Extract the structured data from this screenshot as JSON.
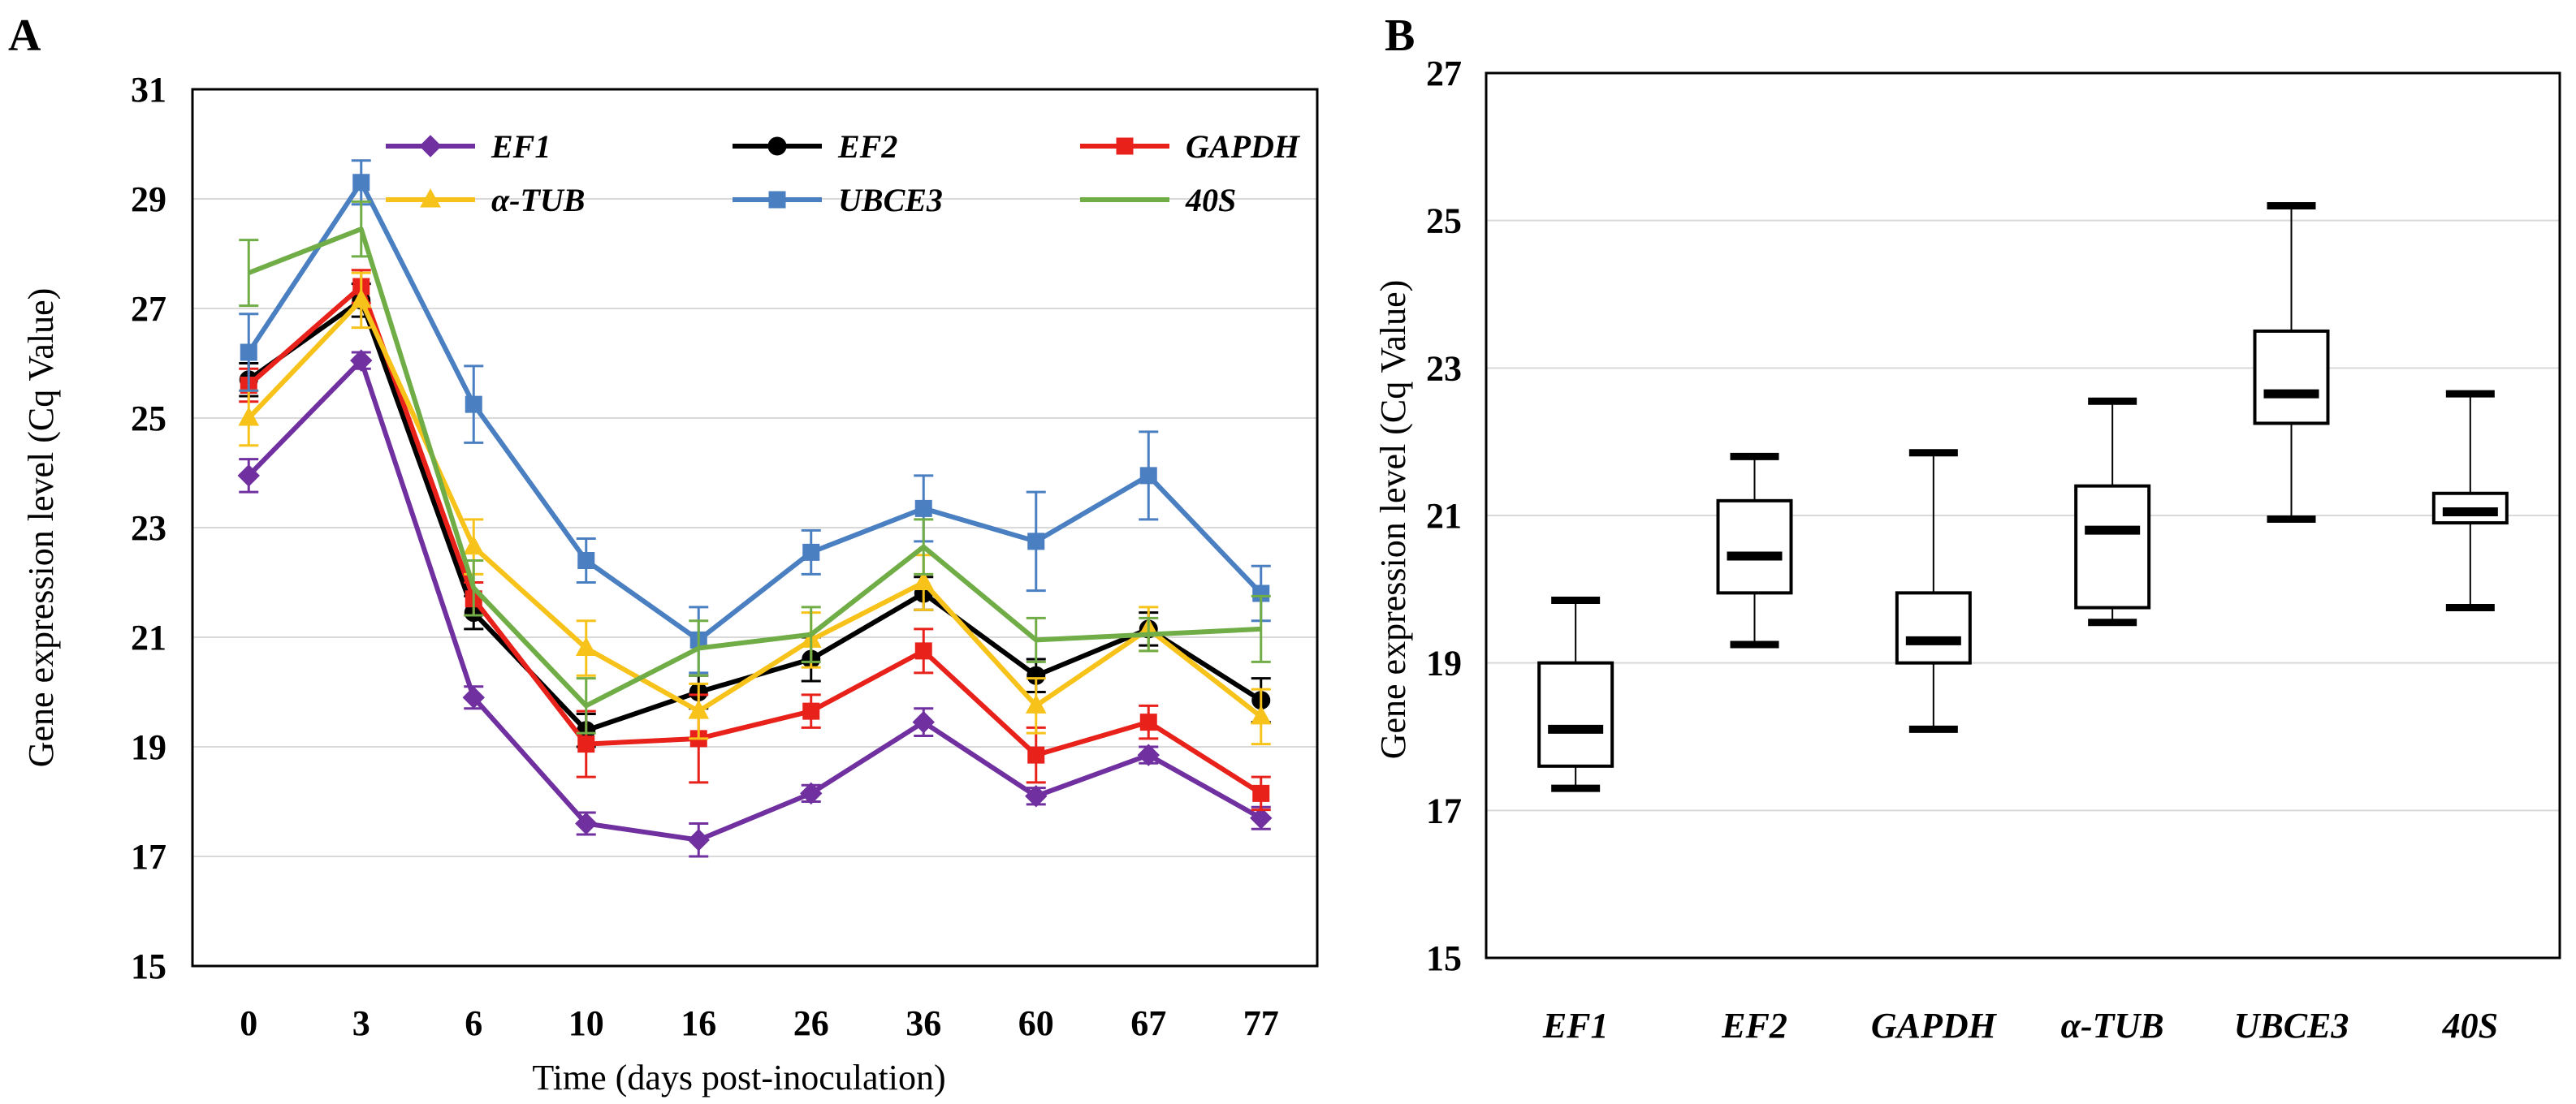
{
  "colors": {
    "EF1": "#7030a0",
    "EF2": "#000000",
    "GAPDH": "#e8211b",
    "alpha_TUB": "#f7c31a",
    "UBCE3": "#4a7fc1",
    "40S": "#70ad47",
    "grid": "#d9d9d9"
  },
  "chart_data": [
    {
      "panel": "A",
      "type": "line",
      "xlabel": "Time (days post-inoculation)",
      "ylabel": "Gene expression level (Cq Value)",
      "ylim": [
        15,
        31
      ],
      "yticks": [
        15,
        17,
        19,
        21,
        23,
        25,
        27,
        29,
        31
      ],
      "categories": [
        "0",
        "3",
        "6",
        "10",
        "16",
        "26",
        "36",
        "60",
        "67",
        "77"
      ],
      "grid": true,
      "legend": "top, 3 columns",
      "series": [
        {
          "name": "EF1",
          "key": "EF1",
          "marker": "diamond",
          "values": [
            23.95,
            26.05,
            19.9,
            17.6,
            17.3,
            18.15,
            19.45,
            18.1,
            18.85,
            17.7
          ],
          "errors": [
            0.3,
            0.15,
            0.2,
            0.2,
            0.3,
            0.15,
            0.25,
            0.15,
            0.15,
            0.2
          ]
        },
        {
          "name": "EF2",
          "key": "EF2",
          "marker": "circle",
          "values": [
            25.7,
            27.15,
            21.45,
            19.3,
            20.0,
            20.6,
            21.8,
            20.3,
            21.15,
            19.85
          ],
          "errors": [
            0.3,
            0.3,
            0.3,
            0.3,
            0.3,
            0.4,
            0.3,
            0.3,
            0.3,
            0.4
          ]
        },
        {
          "name": "GAPDH",
          "key": "GAPDH",
          "marker": "square",
          "values": [
            25.6,
            27.4,
            21.7,
            19.05,
            19.15,
            19.65,
            20.75,
            18.85,
            19.45,
            18.15
          ],
          "errors": [
            0.3,
            0.3,
            0.3,
            0.6,
            0.8,
            0.3,
            0.4,
            0.5,
            0.3,
            0.3
          ]
        },
        {
          "name": "α-TUB",
          "key": "alpha_TUB",
          "marker": "triangle",
          "values": [
            25.0,
            27.15,
            22.65,
            20.8,
            19.65,
            20.95,
            22.0,
            19.75,
            21.15,
            19.55
          ],
          "errors": [
            0.5,
            0.5,
            0.5,
            0.5,
            0.5,
            0.5,
            0.5,
            0.5,
            0.4,
            0.5
          ]
        },
        {
          "name": "UBCE3",
          "key": "UBCE3",
          "marker": "square",
          "values": [
            26.2,
            29.3,
            25.25,
            22.4,
            20.95,
            22.55,
            23.35,
            22.75,
            23.95,
            21.8
          ],
          "errors": [
            0.7,
            0.4,
            0.7,
            0.4,
            0.6,
            0.4,
            0.6,
            0.9,
            0.8,
            0.5
          ]
        },
        {
          "name": "40S",
          "key": "40S",
          "marker": "none",
          "values": [
            27.65,
            28.45,
            21.9,
            19.75,
            20.8,
            21.05,
            22.65,
            20.95,
            21.05,
            21.15
          ],
          "errors": [
            0.6,
            0.5,
            0.5,
            0.5,
            0.5,
            0.5,
            0.5,
            0.4,
            0.3,
            0.6
          ]
        }
      ]
    },
    {
      "panel": "B",
      "type": "box",
      "ylabel": "Gene expression  level (Cq Value)",
      "ylim": [
        15,
        27
      ],
      "yticks": [
        15,
        17,
        19,
        21,
        23,
        25,
        27
      ],
      "grid": true,
      "categories": [
        "EF1",
        "EF2",
        "GAPDH",
        "α-TUB",
        "UBCE3",
        "40S"
      ],
      "boxes": [
        {
          "name": "EF1",
          "min": 17.3,
          "q1": 17.6,
          "median": 18.1,
          "q3": 19.0,
          "max": 19.85
        },
        {
          "name": "EF2",
          "min": 19.25,
          "q1": 19.95,
          "median": 20.45,
          "q3": 21.2,
          "max": 21.8
        },
        {
          "name": "GAPDH",
          "min": 18.1,
          "q1": 19.0,
          "median": 19.3,
          "q3": 19.95,
          "max": 21.85
        },
        {
          "name": "α-TUB",
          "min": 19.55,
          "q1": 19.75,
          "median": 20.8,
          "q3": 21.4,
          "max": 22.55
        },
        {
          "name": "UBCE3",
          "min": 20.95,
          "q1": 22.25,
          "median": 22.65,
          "q3": 23.5,
          "max": 25.2
        },
        {
          "name": "40S",
          "min": 19.75,
          "q1": 20.9,
          "median": 21.05,
          "q3": 21.3,
          "max": 22.65
        }
      ]
    }
  ]
}
